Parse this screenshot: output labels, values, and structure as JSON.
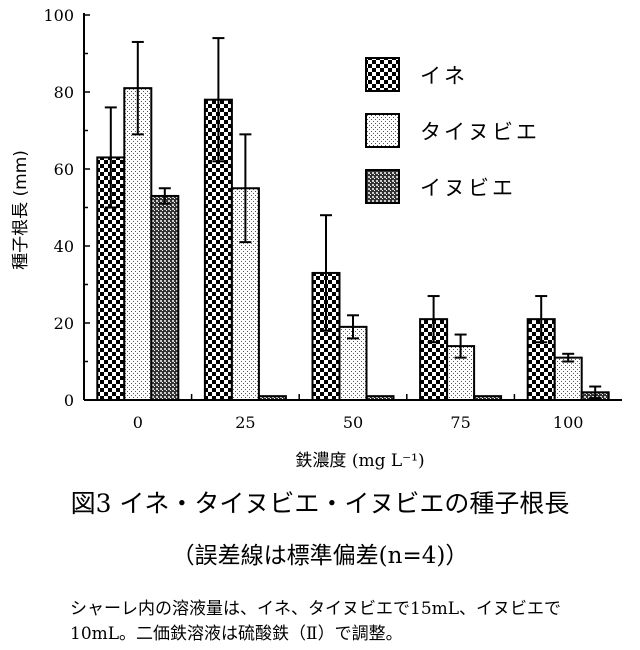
{
  "chart_data": {
    "type": "bar",
    "title": "図3 イネ・タイヌビエ・イヌビエの種子根長",
    "subtitle": "（誤差線は標準偏差(n=4)）",
    "xlabel": "鉄濃度 (mg L⁻¹)",
    "ylabel": "種子根長 (mm)",
    "ylim": [
      0,
      100
    ],
    "yticks": [
      "0",
      "20",
      "40",
      "60",
      "80",
      "100"
    ],
    "categories": [
      "0",
      "25",
      "50",
      "75",
      "100"
    ],
    "legend_position": "top-right",
    "series": [
      {
        "name": "イネ",
        "pattern": "checker",
        "values": [
          63,
          78,
          33,
          21,
          21
        ],
        "errors": [
          13,
          16,
          15,
          6,
          6
        ]
      },
      {
        "name": "タイヌビエ",
        "pattern": "dots",
        "values": [
          81,
          55,
          19,
          14,
          11
        ],
        "errors": [
          12,
          14,
          3,
          3,
          1
        ]
      },
      {
        "name": "イヌビエ",
        "pattern": "dense",
        "values": [
          53,
          1,
          1,
          1,
          2
        ],
        "errors": [
          2,
          0,
          0,
          0,
          1.5
        ]
      }
    ]
  },
  "note": {
    "line1": "シャーレ内の溶液量は、イネ、タイヌビエで15mL、イヌビエで",
    "line2": "10mL。二価鉄溶液は硫酸鉄（Ⅱ）で調整。"
  }
}
